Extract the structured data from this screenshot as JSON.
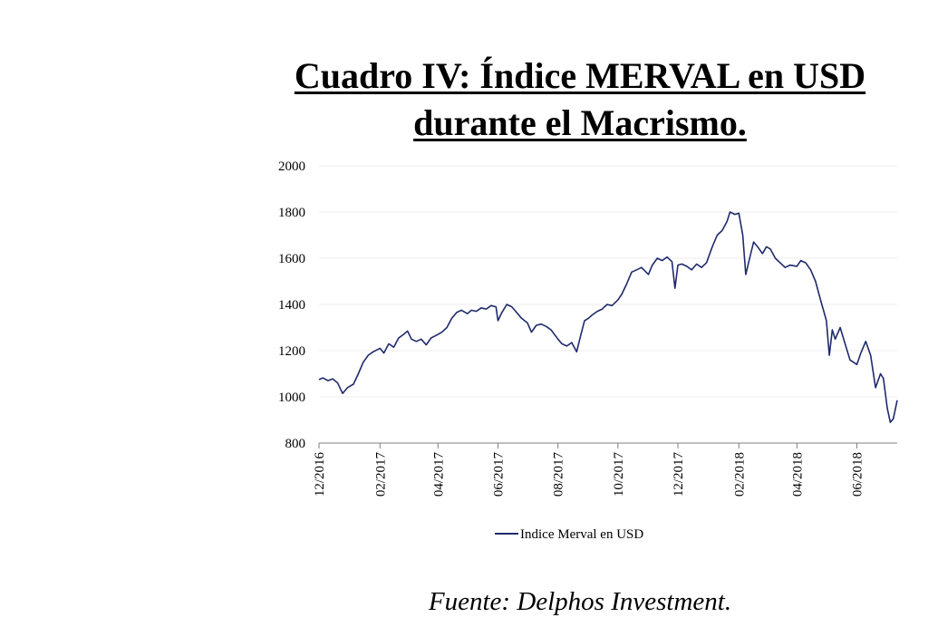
{
  "title_line1": "Cuadro IV: Índice MERVAL en USD",
  "title_line2": "durante el Macrismo.",
  "source": "Fuente: Delphos Investment.",
  "chart_data": {
    "type": "line",
    "title": "Cuadro IV: Índice MERVAL en USD durante el Macrismo.",
    "xlabel": "",
    "ylabel": "",
    "ylim": [
      800,
      2000
    ],
    "yticks": [
      800,
      1000,
      1200,
      1400,
      1600,
      1800,
      2000
    ],
    "xticks": [
      "12/2016",
      "02/2017",
      "04/2017",
      "06/2017",
      "08/2017",
      "10/2017",
      "12/2017",
      "02/2018",
      "04/2018",
      "06/2018"
    ],
    "grid": true,
    "legend_position": "bottom",
    "line_color": "#1f2a6b",
    "series": [
      {
        "name": "Indice Merval en USD",
        "points": [
          [
            "2016-12-01",
            1075
          ],
          [
            "2016-12-05",
            1082
          ],
          [
            "2016-12-10",
            1070
          ],
          [
            "2016-12-15",
            1078
          ],
          [
            "2016-12-20",
            1060
          ],
          [
            "2016-12-25",
            1015
          ],
          [
            "2016-12-30",
            1040
          ],
          [
            "2017-01-05",
            1055
          ],
          [
            "2017-01-10",
            1100
          ],
          [
            "2017-01-15",
            1150
          ],
          [
            "2017-01-20",
            1180
          ],
          [
            "2017-01-25",
            1195
          ],
          [
            "2017-02-01",
            1210
          ],
          [
            "2017-02-05",
            1190
          ],
          [
            "2017-02-10",
            1230
          ],
          [
            "2017-02-15",
            1215
          ],
          [
            "2017-02-20",
            1255
          ],
          [
            "2017-02-25",
            1270
          ],
          [
            "2017-03-01",
            1285
          ],
          [
            "2017-03-05",
            1250
          ],
          [
            "2017-03-10",
            1240
          ],
          [
            "2017-03-15",
            1250
          ],
          [
            "2017-03-20",
            1225
          ],
          [
            "2017-03-25",
            1255
          ],
          [
            "2017-04-01",
            1270
          ],
          [
            "2017-04-05",
            1280
          ],
          [
            "2017-04-10",
            1300
          ],
          [
            "2017-04-15",
            1340
          ],
          [
            "2017-04-20",
            1365
          ],
          [
            "2017-04-25",
            1375
          ],
          [
            "2017-05-01",
            1360
          ],
          [
            "2017-05-05",
            1375
          ],
          [
            "2017-05-10",
            1370
          ],
          [
            "2017-05-15",
            1385
          ],
          [
            "2017-05-20",
            1380
          ],
          [
            "2017-05-25",
            1395
          ],
          [
            "2017-05-30",
            1390
          ],
          [
            "2017-06-01",
            1330
          ],
          [
            "2017-06-05",
            1365
          ],
          [
            "2017-06-10",
            1400
          ],
          [
            "2017-06-15",
            1390
          ],
          [
            "2017-06-20",
            1365
          ],
          [
            "2017-06-25",
            1340
          ],
          [
            "2017-07-01",
            1320
          ],
          [
            "2017-07-05",
            1280
          ],
          [
            "2017-07-10",
            1310
          ],
          [
            "2017-07-15",
            1315
          ],
          [
            "2017-07-20",
            1305
          ],
          [
            "2017-07-25",
            1290
          ],
          [
            "2017-08-01",
            1250
          ],
          [
            "2017-08-05",
            1230
          ],
          [
            "2017-08-10",
            1220
          ],
          [
            "2017-08-15",
            1235
          ],
          [
            "2017-08-20",
            1195
          ],
          [
            "2017-08-25",
            1280
          ],
          [
            "2017-08-28",
            1330
          ],
          [
            "2017-09-01",
            1340
          ],
          [
            "2017-09-05",
            1355
          ],
          [
            "2017-09-10",
            1370
          ],
          [
            "2017-09-15",
            1380
          ],
          [
            "2017-09-20",
            1400
          ],
          [
            "2017-09-25",
            1395
          ],
          [
            "2017-10-01",
            1420
          ],
          [
            "2017-10-05",
            1445
          ],
          [
            "2017-10-10",
            1490
          ],
          [
            "2017-10-15",
            1540
          ],
          [
            "2017-10-20",
            1550
          ],
          [
            "2017-10-25",
            1560
          ],
          [
            "2017-11-01",
            1530
          ],
          [
            "2017-11-05",
            1570
          ],
          [
            "2017-11-10",
            1600
          ],
          [
            "2017-11-15",
            1590
          ],
          [
            "2017-11-20",
            1605
          ],
          [
            "2017-11-25",
            1585
          ],
          [
            "2017-11-28",
            1470
          ],
          [
            "2017-12-01",
            1570
          ],
          [
            "2017-12-05",
            1575
          ],
          [
            "2017-12-10",
            1565
          ],
          [
            "2017-12-15",
            1550
          ],
          [
            "2017-12-20",
            1575
          ],
          [
            "2017-12-25",
            1560
          ],
          [
            "2017-12-30",
            1580
          ],
          [
            "2018-01-05",
            1650
          ],
          [
            "2018-01-10",
            1700
          ],
          [
            "2018-01-15",
            1720
          ],
          [
            "2018-01-20",
            1760
          ],
          [
            "2018-01-23",
            1800
          ],
          [
            "2018-01-28",
            1790
          ],
          [
            "2018-02-01",
            1795
          ],
          [
            "2018-02-05",
            1700
          ],
          [
            "2018-02-08",
            1530
          ],
          [
            "2018-02-12",
            1600
          ],
          [
            "2018-02-16",
            1670
          ],
          [
            "2018-02-20",
            1650
          ],
          [
            "2018-02-25",
            1620
          ],
          [
            "2018-03-01",
            1650
          ],
          [
            "2018-03-05",
            1640
          ],
          [
            "2018-03-10",
            1600
          ],
          [
            "2018-03-15",
            1580
          ],
          [
            "2018-03-20",
            1560
          ],
          [
            "2018-03-25",
            1570
          ],
          [
            "2018-04-01",
            1565
          ],
          [
            "2018-04-05",
            1590
          ],
          [
            "2018-04-10",
            1580
          ],
          [
            "2018-04-15",
            1550
          ],
          [
            "2018-04-20",
            1500
          ],
          [
            "2018-04-25",
            1420
          ],
          [
            "2018-05-01",
            1330
          ],
          [
            "2018-05-04",
            1180
          ],
          [
            "2018-05-07",
            1290
          ],
          [
            "2018-05-10",
            1250
          ],
          [
            "2018-05-15",
            1300
          ],
          [
            "2018-05-20",
            1230
          ],
          [
            "2018-05-25",
            1160
          ],
          [
            "2018-06-01",
            1140
          ],
          [
            "2018-06-05",
            1190
          ],
          [
            "2018-06-10",
            1240
          ],
          [
            "2018-06-15",
            1180
          ],
          [
            "2018-06-20",
            1040
          ],
          [
            "2018-06-25",
            1100
          ],
          [
            "2018-06-28",
            1080
          ],
          [
            "2018-07-02",
            950
          ],
          [
            "2018-07-05",
            890
          ],
          [
            "2018-07-08",
            905
          ],
          [
            "2018-07-12",
            985
          ]
        ]
      }
    ]
  }
}
